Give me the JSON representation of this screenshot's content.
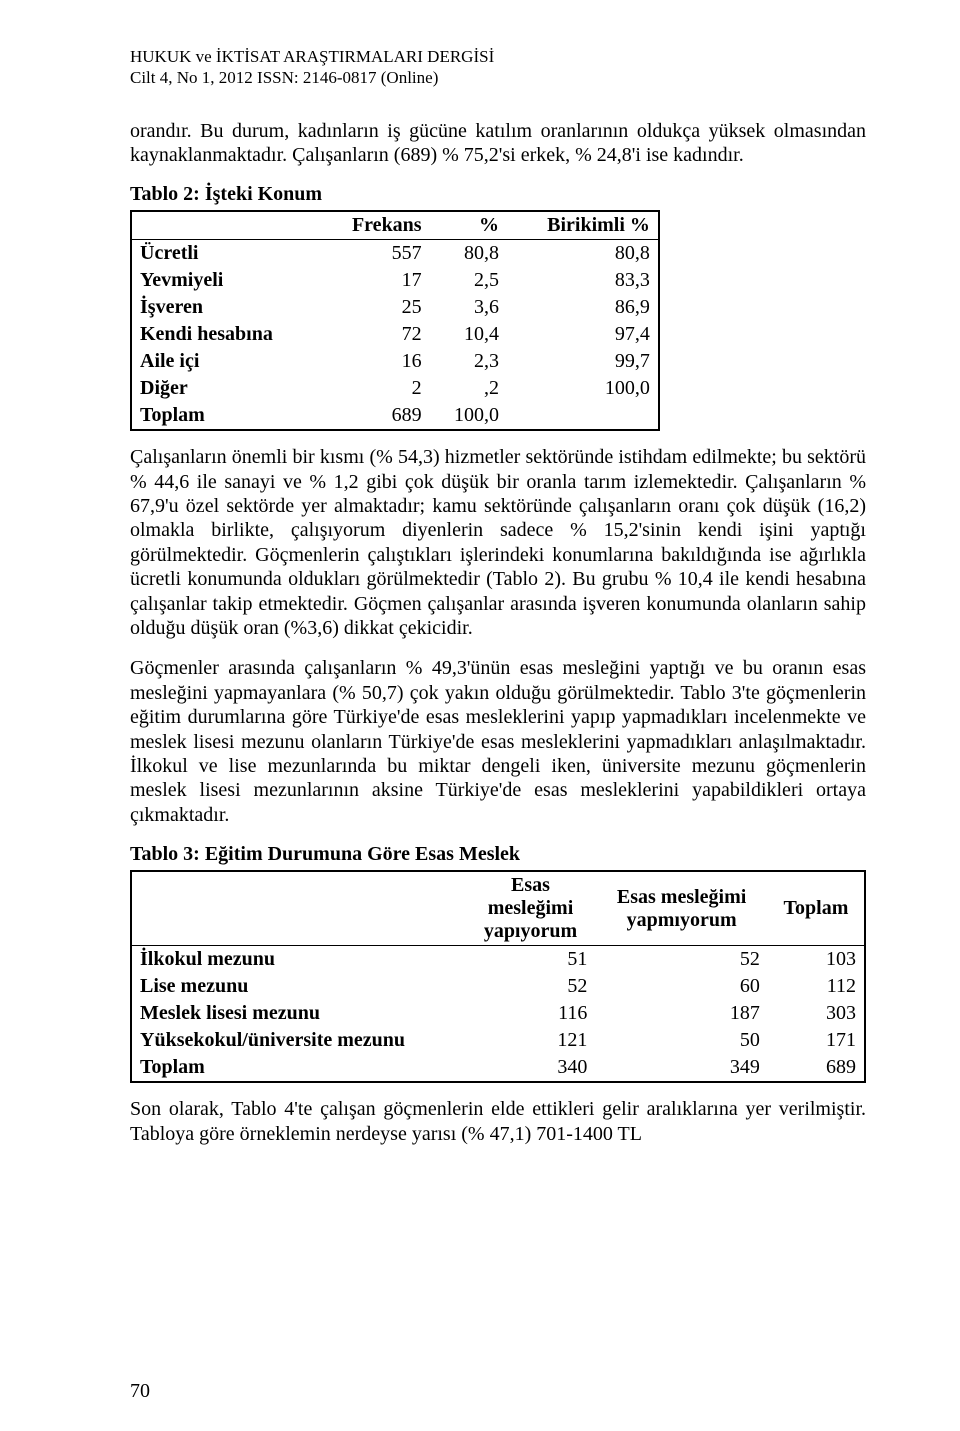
{
  "header": {
    "line1": "HUKUK ve İKTİSAT ARAŞTIRMALARI DERGİSİ",
    "line2": "Cilt 4, No 1, 2012   ISSN: 2146-0817 (Online)"
  },
  "paragraphs": {
    "p1": "orandır. Bu durum, kadınların iş gücüne katılım oranlarının oldukça yüksek olmasından kaynaklanmaktadır. Çalışanların (689) % 75,2'si erkek, % 24,8'i ise kadındır.",
    "p2": "Çalışanların önemli bir kısmı (% 54,3) hizmetler sektöründe istihdam edilmekte; bu sektörü % 44,6 ile sanayi ve % 1,2 gibi çok düşük bir oranla tarım izlemektedir. Çalışanların % 67,9'u özel sektörde yer almaktadır; kamu sektöründe çalışanların oranı çok düşük (16,2) olmakla birlikte, çalışıyorum diyenlerin sadece % 15,2'sinin kendi işini yaptığı görülmektedir. Göçmenlerin çalıştıkları işlerindeki konumlarına bakıldığında ise ağırlıkla ücretli konumunda oldukları görülmektedir (Tablo 2). Bu grubu % 10,4 ile kendi hesabına çalışanlar takip etmektedir. Göçmen çalışanlar arasında işveren konumunda olanların sahip olduğu düşük oran (%3,6) dikkat çekicidir.",
    "p3": "Göçmenler arasında çalışanların % 49,3'ünün esas mesleğini yaptığı ve bu oranın esas mesleğini yapmayanlara (% 50,7) çok yakın olduğu görülmektedir. Tablo 3'te göçmenlerin eğitim durumlarına göre Türkiye'de esas mesleklerini yapıp yapmadıkları incelenmekte ve meslek lisesi mezunu olanların Türkiye'de esas mesleklerini yapmadıkları anlaşılmaktadır. İlkokul ve lise mezunlarında bu miktar dengeli iken, üniversite mezunu göçmenlerin meslek lisesi mezunlarının aksine Türkiye'de esas mesleklerini yapabildikleri ortaya çıkmaktadır.",
    "p4": "Son olarak, Tablo 4'te çalışan göçmenlerin elde ettikleri gelir aralıklarına yer verilmiştir. Tabloya göre örneklemin nerdeyse yarısı (% 47,1) 701-1400 TL"
  },
  "table1": {
    "title": "Tablo 2: İşteki Konum",
    "columns": [
      "",
      "Frekans",
      "%",
      "Birikimli %"
    ],
    "rows": [
      [
        "Ücretli",
        "557",
        "80,8",
        "80,8"
      ],
      [
        "Yevmiyeli",
        "17",
        "2,5",
        "83,3"
      ],
      [
        "İşveren",
        "25",
        "3,6",
        "86,9"
      ],
      [
        "Kendi hesabına",
        "72",
        "10,4",
        "97,4"
      ],
      [
        "Aile içi",
        "16",
        "2,3",
        "99,7"
      ],
      [
        "Diğer",
        "2",
        ",2",
        "100,0"
      ],
      [
        "Toplam",
        "689",
        "100,0",
        ""
      ]
    ]
  },
  "table2": {
    "title": "Tablo 3: Eğitim Durumuna Göre Esas Meslek",
    "columns": [
      "",
      "Esas mesleğimi yapıyorum",
      "Esas mesleğimi yapmıyorum",
      "Toplam"
    ],
    "col2_lines": [
      "Esas",
      "mesleğimi",
      "yapıyorum"
    ],
    "col3_lines": [
      "Esas mesleğimi",
      "yapmıyorum"
    ],
    "rows": [
      [
        "İlkokul mezunu",
        "51",
        "52",
        "103"
      ],
      [
        "Lise mezunu",
        "52",
        "60",
        "112"
      ],
      [
        "Meslek lisesi mezunu",
        "116",
        "187",
        "303"
      ],
      [
        "Yüksekokul/üniversite mezunu",
        "121",
        "50",
        "171"
      ],
      [
        "Toplam",
        "340",
        "349",
        "689"
      ]
    ]
  },
  "page_number": "70"
}
